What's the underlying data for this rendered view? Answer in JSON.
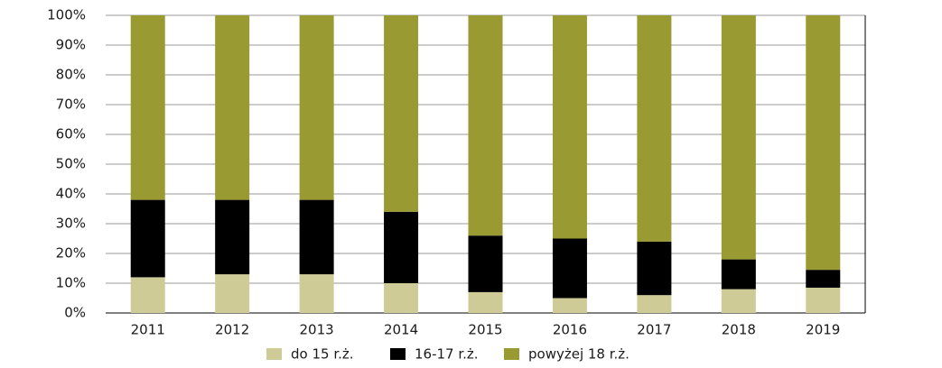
{
  "chart_data": {
    "type": "stacked_bar",
    "categories": [
      "2011",
      "2012",
      "2013",
      "2014",
      "2015",
      "2016",
      "2017",
      "2018",
      "2019"
    ],
    "series": [
      {
        "name": "do 15 r.ż.",
        "color": "#cfcb96",
        "values": [
          12,
          13,
          13,
          10,
          7,
          5,
          6,
          8,
          8.5
        ]
      },
      {
        "name": "16-17 r.ż.",
        "color": "#000000",
        "values": [
          26,
          25,
          25,
          24,
          19,
          20,
          18,
          10,
          6
        ]
      },
      {
        "name": "powyżej 18 r.ż.",
        "color": "#9a9a32",
        "values": [
          62,
          62,
          62,
          66,
          74,
          75,
          76,
          82,
          85.5
        ]
      }
    ],
    "ylim": [
      0,
      100
    ],
    "yticks": [
      {
        "value": 0,
        "label": "0%"
      },
      {
        "value": 10,
        "label": "10%"
      },
      {
        "value": 20,
        "label": "20%"
      },
      {
        "value": 30,
        "label": "30%"
      },
      {
        "value": 40,
        "label": "40%"
      },
      {
        "value": 50,
        "label": "50%"
      },
      {
        "value": 60,
        "label": "60%"
      },
      {
        "value": 70,
        "label": "70%"
      },
      {
        "value": 80,
        "label": "80%"
      },
      {
        "value": 90,
        "label": "90%"
      },
      {
        "value": 100,
        "label": "100%"
      }
    ],
    "grid": true,
    "legend": "bottom"
  }
}
